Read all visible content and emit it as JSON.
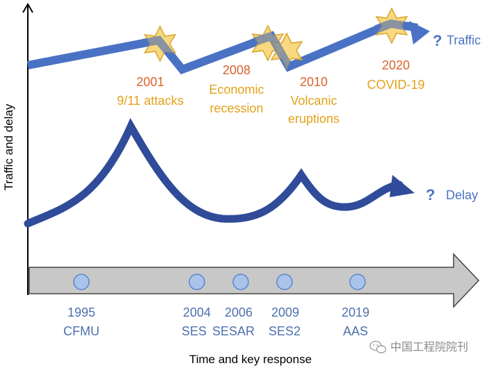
{
  "axes": {
    "y_label": "Traffic and delay",
    "x_label": "Time and key response"
  },
  "series": {
    "traffic": {
      "qmark": "?",
      "label": "Traffic"
    },
    "delay": {
      "qmark": "?",
      "label": "Delay"
    }
  },
  "events": [
    {
      "year": "2001",
      "lines": [
        "9/11 attacks"
      ]
    },
    {
      "year": "2008",
      "lines": [
        "Economic",
        "recession"
      ]
    },
    {
      "year": "2010",
      "lines": [
        "Volcanic",
        "eruptions"
      ]
    },
    {
      "year": "2020",
      "lines": [
        "COVID-19"
      ]
    }
  ],
  "responses": [
    {
      "year": "1995",
      "name": "CFMU"
    },
    {
      "year": "2004",
      "name": "SES"
    },
    {
      "year": "2006",
      "name": "SESAR"
    },
    {
      "year": "2009",
      "name": "SES2"
    },
    {
      "year": "2019",
      "name": "AAS"
    }
  ],
  "watermark": "中国工程院院刊",
  "colors": {
    "traffic": "#4A72C4",
    "delay": "#2F4B9A",
    "event_year": "#D9622B",
    "event_text": "#E3A21A",
    "response_text": "#4E6FAE",
    "dot_fill": "#A9C3EA",
    "dot_stroke": "#5B86C8",
    "arrow_fill": "#C8C8C8",
    "star_fill": "#F6CE60",
    "star_stroke": "#D9A52A"
  }
}
